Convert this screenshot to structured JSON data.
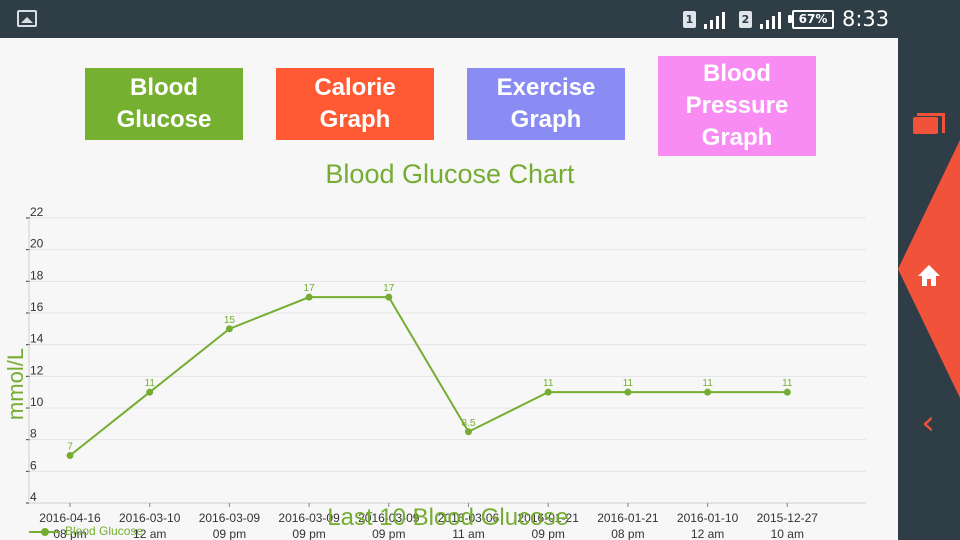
{
  "status_bar": {
    "sim1_label": "1",
    "sim2_label": "2",
    "battery_percent": "67%",
    "time": "8:33",
    "icons": [
      "gallery-icon",
      "signal-icon",
      "battery-icon"
    ]
  },
  "navigation": {
    "blood_glucose_label": "Blood Glucose",
    "calorie_label": "Calorie Graph",
    "exercise_label": "Exercise Graph",
    "pressure_label": "Blood Pressure Graph"
  },
  "chart_data": {
    "type": "line",
    "title": "Blood Glucose Chart",
    "xlabel": "Last 10 Blood Glucose",
    "ylabel": "mmol/L",
    "categories": [
      "2016-04-16 08 pm",
      "2016-03-10 12 am",
      "2016-03-09 09 pm",
      "2016-03-09 09 pm",
      "2016-03-09 09 pm",
      "2016-03-06 11 am",
      "2016-01-21 09 pm",
      "2016-01-21 08 pm",
      "2016-01-10 12 am",
      "2015-12-27 10 am"
    ],
    "series": [
      {
        "name": "Blood Glucose",
        "values": [
          7,
          11,
          15,
          17,
          17,
          8.5,
          11,
          11,
          11,
          11
        ]
      }
    ],
    "ylim": [
      4,
      22
    ],
    "y_ticks": [
      4,
      6,
      8,
      10,
      12,
      14,
      16,
      18,
      20,
      22
    ],
    "grid": true,
    "legend_position": "bottom-left",
    "line_color": "#75ad32"
  },
  "side_panel": {
    "icons": [
      "recent-apps-icon",
      "home-icon",
      "back-icon"
    ],
    "accent": "#f0533a"
  },
  "colors": {
    "blood_glucose_button": "#76b030",
    "calorie_button": "#ff5a33",
    "exercise_button": "#8a8cf4",
    "pressure_button": "#f88cf2"
  }
}
